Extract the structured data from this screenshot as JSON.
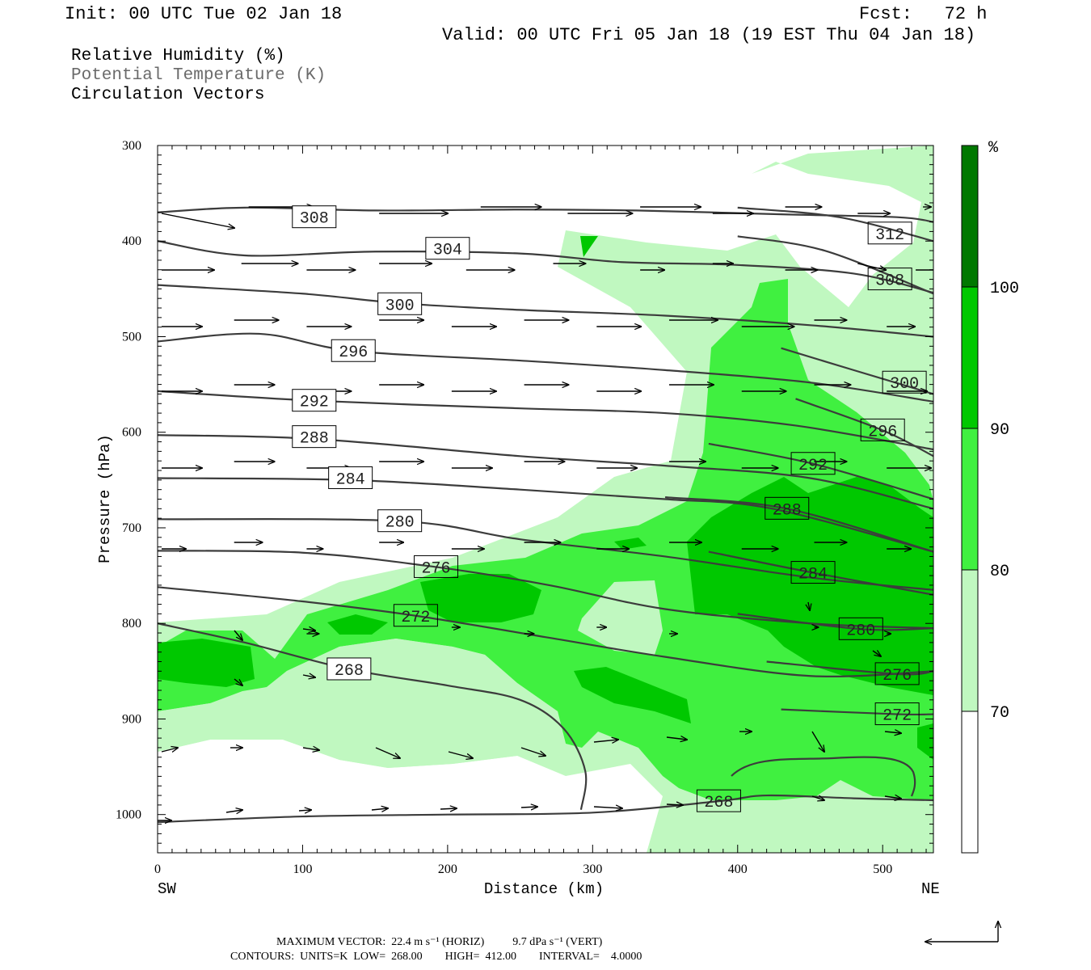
{
  "header": {
    "init": "Init: 00 UTC Tue 02 Jan 18",
    "fcst": "Fcst:   72 h",
    "valid": "Valid: 00 UTC Fri 05 Jan 18 (19 EST Thu 04 Jan 18)"
  },
  "legend": {
    "field1": "Relative Humidity (%)",
    "field2": "Potential Temperature (K)",
    "field3": "Circulation Vectors"
  },
  "footer": {
    "line1": "MAXIMUM VECTOR:  22.4 m s⁻¹ (HORIZ)          9.7 dPa s⁻¹ (VERT)",
    "line2": "CONTOURS:  UNITS=K  LOW=  268.00        HIGH=  412.00        INTERVAL=    4.0000"
  },
  "colors": {
    "rh_70_80": "#c0f8c0",
    "rh_80_90": "#40f040",
    "rh_90_100": "#00c800",
    "rh_100": "#007800",
    "theta_line": "#3c3c3c"
  },
  "chart_data": {
    "type": "cross-section",
    "xlabel": "Distance (km)",
    "ylabel": "Pressure (hPa)",
    "xlim": [
      0,
      535
    ],
    "ylim": [
      1040,
      300
    ],
    "x_ticks": [
      0,
      100,
      200,
      300,
      400,
      500
    ],
    "y_ticks": [
      300,
      400,
      500,
      600,
      700,
      800,
      900,
      1000
    ],
    "x_end_labels": {
      "left": "SW",
      "right": "NE"
    },
    "colorbar": {
      "unit": "%",
      "levels": [
        70,
        80,
        90,
        100
      ]
    },
    "theta_contours": [
      {
        "label": "308",
        "label_at": [
          108,
          375
        ],
        "points": [
          [
            0,
            370
          ],
          [
            60,
            365
          ],
          [
            150,
            368
          ],
          [
            250,
            367
          ],
          [
            330,
            368
          ],
          [
            430,
            372
          ],
          [
            510,
            375
          ],
          [
            535,
            380
          ]
        ]
      },
      {
        "label": "312",
        "label_at": [
          505,
          392
        ],
        "points": [
          [
            400,
            365
          ],
          [
            470,
            375
          ],
          [
            535,
            400
          ]
        ]
      },
      {
        "label": "304",
        "label_at": [
          200,
          408
        ],
        "points": [
          [
            0,
            400
          ],
          [
            60,
            415
          ],
          [
            150,
            411
          ],
          [
            250,
            413
          ],
          [
            320,
            422
          ],
          [
            400,
            425
          ],
          [
            480,
            434
          ],
          [
            535,
            454
          ]
        ]
      },
      {
        "label": "308",
        "label_at": [
          505,
          440
        ],
        "points": [
          [
            400,
            395
          ],
          [
            460,
            410
          ],
          [
            535,
            455
          ]
        ]
      },
      {
        "label": "300",
        "label_at": [
          167,
          466
        ],
        "points": [
          [
            0,
            446
          ],
          [
            100,
            455
          ],
          [
            167,
            465
          ],
          [
            250,
            472
          ],
          [
            350,
            478
          ],
          [
            450,
            488
          ],
          [
            535,
            500
          ]
        ]
      },
      {
        "label": "296",
        "label_at": [
          135,
          515
        ],
        "points": [
          [
            0,
            505
          ],
          [
            70,
            497
          ],
          [
            135,
            515
          ],
          [
            250,
            525
          ],
          [
            350,
            535
          ],
          [
            450,
            548
          ],
          [
            535,
            568
          ]
        ]
      },
      {
        "label": "300",
        "label_at": [
          515,
          548
        ],
        "points": [
          [
            430,
            512
          ],
          [
            480,
            535
          ],
          [
            535,
            560
          ]
        ]
      },
      {
        "label": "292",
        "label_at": [
          108,
          567
        ],
        "points": [
          [
            0,
            557
          ],
          [
            108,
            567
          ],
          [
            250,
            575
          ],
          [
            350,
            580
          ],
          [
            440,
            593
          ],
          [
            535,
            618
          ]
        ]
      },
      {
        "label": "296",
        "label_at": [
          500,
          598
        ],
        "points": [
          [
            440,
            565
          ],
          [
            500,
            598
          ],
          [
            535,
            625
          ]
        ]
      },
      {
        "label": "288",
        "label_at": [
          108,
          605
        ],
        "points": [
          [
            0,
            603
          ],
          [
            108,
            607
          ],
          [
            250,
            625
          ],
          [
            350,
            635
          ],
          [
            450,
            648
          ],
          [
            535,
            680
          ]
        ]
      },
      {
        "label": "292",
        "label_at": [
          452,
          633
        ],
        "points": [
          [
            380,
            612
          ],
          [
            452,
            633
          ],
          [
            535,
            670
          ]
        ]
      },
      {
        "label": "284",
        "label_at": [
          133,
          648
        ],
        "points": [
          [
            0,
            648
          ],
          [
            133,
            650
          ],
          [
            250,
            660
          ],
          [
            350,
            670
          ],
          [
            424,
            680
          ],
          [
            535,
            725
          ]
        ]
      },
      {
        "label": "288",
        "label_at": [
          434,
          680
        ],
        "points": [
          [
            350,
            668
          ],
          [
            434,
            680
          ],
          [
            535,
            725
          ]
        ]
      },
      {
        "label": "280",
        "label_at": [
          167,
          693
        ],
        "points": [
          [
            0,
            691
          ],
          [
            167,
            693
          ],
          [
            250,
            712
          ],
          [
            350,
            730
          ],
          [
            450,
            752
          ],
          [
            535,
            765
          ]
        ]
      },
      {
        "label": "284",
        "label_at": [
          452,
          747
        ],
        "points": [
          [
            380,
            725
          ],
          [
            452,
            747
          ],
          [
            535,
            770
          ]
        ]
      },
      {
        "label": "276",
        "label_at": [
          192,
          741
        ],
        "points": [
          [
            0,
            724
          ],
          [
            100,
            726
          ],
          [
            192,
            741
          ],
          [
            270,
            760
          ],
          [
            350,
            785
          ],
          [
            450,
            800
          ],
          [
            535,
            805
          ]
        ]
      },
      {
        "label": "280",
        "label_at": [
          485,
          806
        ],
        "points": [
          [
            400,
            790
          ],
          [
            485,
            806
          ],
          [
            535,
            805
          ]
        ]
      },
      {
        "label": "272",
        "label_at": [
          178,
          792
        ],
        "points": [
          [
            0,
            762
          ],
          [
            100,
            777
          ],
          [
            178,
            792
          ],
          [
            270,
            815
          ],
          [
            350,
            835
          ],
          [
            450,
            855
          ],
          [
            535,
            850
          ]
        ]
      },
      {
        "label": "276",
        "label_at": [
          510,
          853
        ],
        "points": [
          [
            420,
            840
          ],
          [
            510,
            853
          ],
          [
            535,
            850
          ]
        ]
      },
      {
        "label": "268",
        "label_at": [
          132,
          848
        ],
        "points": [
          [
            0,
            800
          ],
          [
            60,
            820
          ],
          [
            132,
            848
          ],
          [
            200,
            865
          ],
          [
            250,
            880
          ],
          [
            280,
            910
          ],
          [
            295,
            955
          ],
          [
            292,
            995
          ]
        ]
      },
      {
        "label": "272",
        "label_at": [
          510,
          895
        ],
        "points": [
          [
            430,
            890
          ],
          [
            510,
            895
          ],
          [
            535,
            895
          ]
        ]
      },
      {
        "label": "268",
        "label_at": [
          387,
          986
        ],
        "points": [
          [
            0,
            1008
          ],
          [
            100,
            1002
          ],
          [
            200,
            1000
          ],
          [
            300,
            998
          ],
          [
            387,
            986
          ],
          [
            420,
            980
          ],
          [
            480,
            983
          ],
          [
            535,
            985
          ]
        ]
      }
    ],
    "rh_levels_shown": [
      70,
      80,
      90,
      100
    ],
    "vector_max": {
      "horiz": "22.4 m s-1",
      "vert": "9.7 dPa s-1"
    },
    "contour_info": {
      "units": "K",
      "low": 268.0,
      "high": 412.0,
      "interval": 4.0
    }
  }
}
